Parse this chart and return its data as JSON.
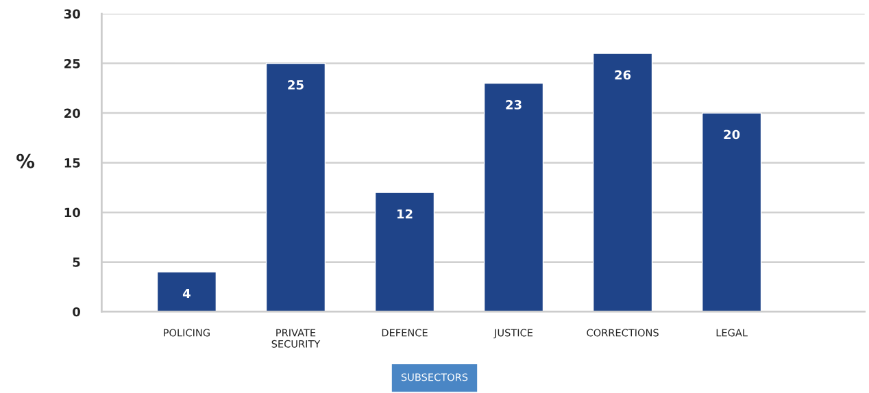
{
  "chart_data": {
    "type": "bar",
    "categories": [
      "POLICING",
      "PRIVATE\nSECURITY",
      "DEFENCE",
      "JUSTICE",
      "CORRECTIONS",
      "LEGAL"
    ],
    "values": [
      4,
      25,
      12,
      23,
      26,
      20
    ],
    "color": "#1f4489",
    "xlabel": "SUBSECTORS",
    "ylabel": "%",
    "ylim": [
      0,
      30
    ],
    "yticks": [
      0,
      5,
      10,
      15,
      20,
      25,
      30
    ],
    "grid": "y",
    "data_labels": true,
    "legend": false
  }
}
